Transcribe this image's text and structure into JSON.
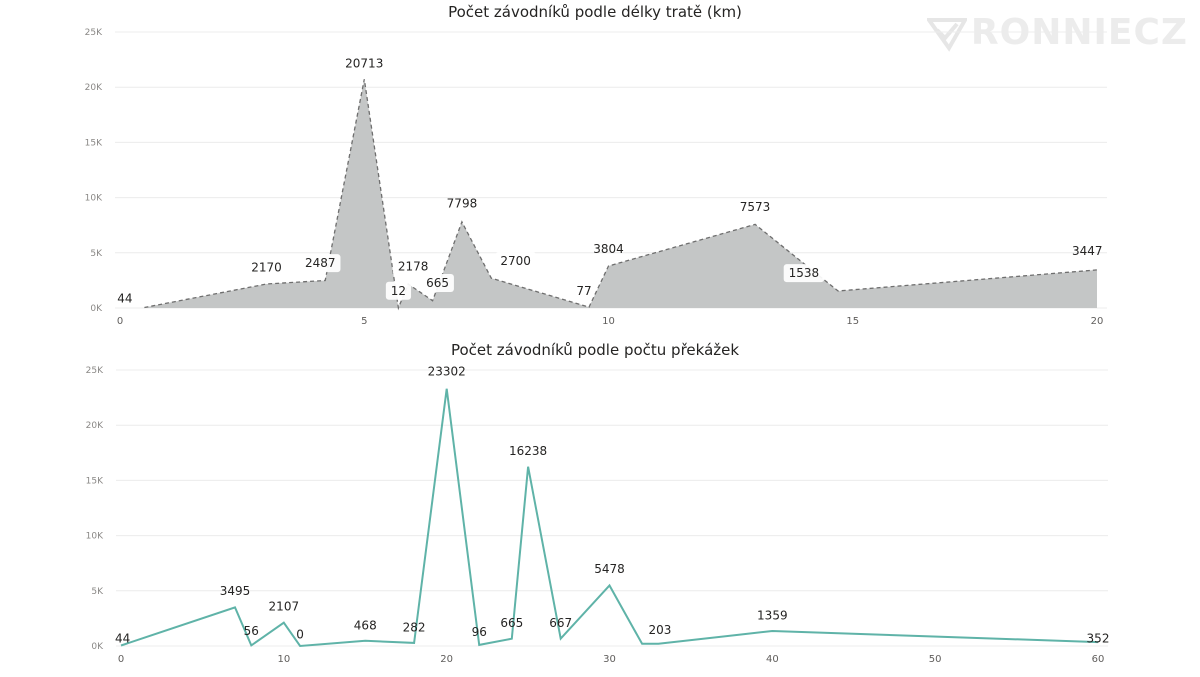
{
  "watermark": "RONNIECZ",
  "chart_data": [
    {
      "type": "area",
      "title": "Počet závodníků podle délky tratě (km)",
      "x": [
        0.5,
        3,
        4.2,
        5,
        5.7,
        5.9,
        6.4,
        7,
        7.6,
        9.6,
        10,
        13,
        14.7,
        20
      ],
      "values": [
        44,
        2170,
        2487,
        20713,
        12,
        2178,
        665,
        7798,
        2700,
        77,
        3804,
        7573,
        1538,
        3447
      ],
      "label_x": [
        0.1,
        3.0,
        4.1,
        5.0,
        5.7,
        6.0,
        6.5,
        7.0,
        8.1,
        9.5,
        10.0,
        13.0,
        14.0,
        19.8
      ],
      "label_y": [
        500,
        3300,
        3700,
        21800,
        1200,
        3400,
        1900,
        9100,
        3900,
        1200,
        5000,
        8800,
        2800,
        4800
      ],
      "label_box": [
        false,
        false,
        true,
        false,
        true,
        true,
        true,
        false,
        true,
        false,
        false,
        false,
        true,
        false
      ],
      "xlim": [
        0,
        20
      ],
      "ylim": [
        0,
        25000
      ],
      "x_ticks": [
        "0",
        "5",
        "10",
        "15",
        "20"
      ],
      "x_tick_values": [
        0,
        5,
        10,
        15,
        20
      ],
      "y_ticks": [
        "0K",
        "5K",
        "10K",
        "15K",
        "20K",
        "25K"
      ],
      "y_tick_values": [
        0,
        5000,
        10000,
        15000,
        20000,
        25000
      ],
      "fill": "#c4c6c6",
      "stroke": "#6e6e6e",
      "grid": true
    },
    {
      "type": "line",
      "title": "Počet závodníků podle počtu překážek",
      "x": [
        0,
        7,
        8,
        10,
        11,
        15,
        18,
        20,
        22,
        24,
        25,
        27,
        30,
        32,
        33,
        40,
        60
      ],
      "values": [
        44,
        3495,
        56,
        2107,
        0,
        468,
        282,
        23302,
        96,
        665,
        16238,
        667,
        5478,
        203,
        203,
        1359,
        352
      ],
      "labels": [
        "44",
        "3495",
        "56",
        "2107",
        "0",
        "468",
        "282",
        "23302",
        "96",
        "665",
        "16238",
        "667",
        "5478",
        "",
        "203",
        "1359",
        "352"
      ],
      "label_x": [
        0.1,
        7,
        8,
        10,
        11,
        15,
        18,
        20,
        22,
        24,
        25,
        27,
        30,
        32,
        33.1,
        40,
        60
      ],
      "label_y": [
        300,
        4600,
        1000,
        3200,
        700,
        1500,
        1300,
        24500,
        900,
        1700,
        17300,
        1700,
        6600,
        0,
        1100,
        2400,
        300
      ],
      "xlim": [
        0,
        60
      ],
      "ylim": [
        0,
        25000
      ],
      "x_ticks": [
        "0",
        "10",
        "20",
        "30",
        "40",
        "50",
        "60"
      ],
      "x_tick_values": [
        0,
        10,
        20,
        30,
        40,
        50,
        60
      ],
      "y_ticks": [
        "0K",
        "5K",
        "10K",
        "15K",
        "20K",
        "25K"
      ],
      "y_tick_values": [
        0,
        5000,
        10000,
        15000,
        20000,
        25000
      ],
      "stroke": "#5fb3a8",
      "grid": true
    }
  ]
}
